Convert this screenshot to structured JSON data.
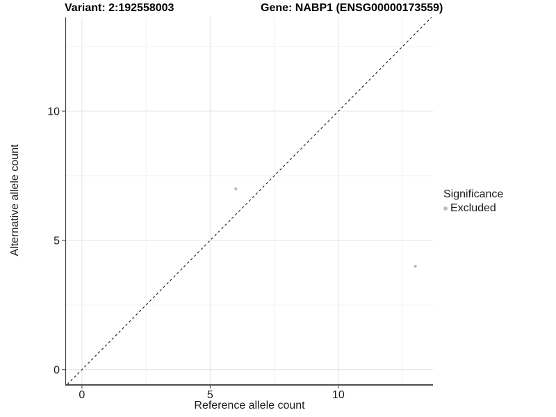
{
  "chart_data": {
    "type": "scatter",
    "titles": [
      "Variant: 2:192558003",
      "Gene: NABP1 (ENSG00000173559)"
    ],
    "xlabel": "Reference allele count",
    "ylabel": "Alternative allele count",
    "xlim": [
      -0.62,
      13.69
    ],
    "ylim": [
      -0.57,
      13.63
    ],
    "x_ticks": [
      0,
      5,
      10
    ],
    "y_ticks": [
      0,
      5,
      10
    ],
    "x_minor_ticks": [
      2.5,
      7.5,
      12.5
    ],
    "y_minor_ticks": [
      2.5,
      7.5,
      12.5
    ],
    "grid": "major+minor",
    "series": [
      {
        "name": "Excluded",
        "marker": "circle",
        "color": "#bdbdbd",
        "points": [
          {
            "x": 6,
            "y": 7
          },
          {
            "x": 13,
            "y": 4
          }
        ]
      }
    ],
    "reference_line": {
      "type": "identity",
      "slope": 1,
      "intercept": 0,
      "style": "dashed",
      "color": "#1a1a1a"
    },
    "legend": {
      "title": "Significance",
      "position": "right",
      "entries": [
        {
          "label": "Excluded",
          "color": "#bdbdbd",
          "marker": "circle"
        }
      ]
    }
  },
  "colors": {
    "background": "#ffffff",
    "grid_major": "#e3e3e3",
    "grid_minor": "#f2f2f2",
    "axis_line": "#3a3a3a",
    "tick_mark": "#333333",
    "tick_text": "#1a1a1a"
  }
}
